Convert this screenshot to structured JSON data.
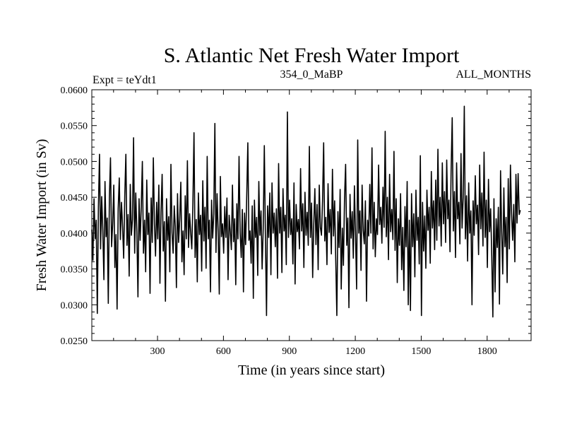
{
  "chart_data": {
    "type": "line",
    "title": "S. Atlantic Net Fresh Water Import",
    "subtitle_left": "Expt = teYdt1",
    "subtitle_center": "354_0_MaBP",
    "subtitle_right": "ALL_MONTHS",
    "xlabel": "Time (in years since start)",
    "ylabel": "Fresh Water Import (in Sv)",
    "xlim": [
      1,
      2000
    ],
    "ylim": [
      0.025,
      0.06
    ],
    "xticks": [
      300,
      600,
      900,
      1200,
      1500,
      1800
    ],
    "xtick_labels": [
      "300",
      "600",
      "900",
      "1200",
      "1500",
      "1800"
    ],
    "yticks": [
      0.025,
      0.03,
      0.035,
      0.04,
      0.045,
      0.05,
      0.055,
      0.06
    ],
    "ytick_labels": [
      "0.0250",
      "0.0300",
      "0.0350",
      "0.0400",
      "0.0450",
      "0.0500",
      "0.0550",
      "0.0600"
    ],
    "series": [
      {
        "name": "Net Fresh Water Import",
        "color": "#000000",
        "x_start": 1,
        "x_step": 5,
        "values": [
          0.0405,
          0.0362,
          0.0448,
          0.0392,
          0.0418,
          0.0288,
          0.0436,
          0.051,
          0.0378,
          0.0451,
          0.0404,
          0.0335,
          0.0472,
          0.0395,
          0.0421,
          0.0302,
          0.0449,
          0.0505,
          0.0381,
          0.0413,
          0.0467,
          0.0352,
          0.0398,
          0.0294,
          0.0434,
          0.0477,
          0.0391,
          0.0443,
          0.0409,
          0.0365,
          0.0452,
          0.051,
          0.0383,
          0.0426,
          0.034,
          0.0468,
          0.0397,
          0.0419,
          0.0533,
          0.0372,
          0.0456,
          0.0402,
          0.0311,
          0.0448,
          0.039,
          0.0437,
          0.05,
          0.0372,
          0.0418,
          0.0346,
          0.0474,
          0.0398,
          0.0428,
          0.0316,
          0.0449,
          0.0387,
          0.0505,
          0.0412,
          0.0368,
          0.0443,
          0.0392,
          0.0467,
          0.033,
          0.043,
          0.0482,
          0.0375,
          0.0416,
          0.0305,
          0.0448,
          0.039,
          0.0423,
          0.0346,
          0.0496,
          0.0401,
          0.0372,
          0.0438,
          0.0409,
          0.0324,
          0.0455,
          0.0387,
          0.0419,
          0.0471,
          0.036,
          0.0403,
          0.0342,
          0.0452,
          0.0392,
          0.0501,
          0.038,
          0.0427,
          0.04,
          0.0378,
          0.0442,
          0.054,
          0.0366,
          0.0419,
          0.0332,
          0.0456,
          0.0398,
          0.0425,
          0.0347,
          0.0473,
          0.0389,
          0.0436,
          0.0351,
          0.0507,
          0.0392,
          0.0418,
          0.0318,
          0.0446,
          0.0393,
          0.0427,
          0.0553,
          0.0373,
          0.0455,
          0.0402,
          0.0315,
          0.0479,
          0.0395,
          0.0413,
          0.0372,
          0.0437,
          0.0394,
          0.0449,
          0.0335,
          0.0425,
          0.0402,
          0.0377,
          0.0467,
          0.0388,
          0.042,
          0.0328,
          0.0441,
          0.0392,
          0.0507,
          0.04,
          0.0366,
          0.0433,
          0.0318,
          0.0428,
          0.0384,
          0.0452,
          0.0526,
          0.039,
          0.0403,
          0.0358,
          0.0438,
          0.0309,
          0.0446,
          0.0394,
          0.0422,
          0.0341,
          0.0472,
          0.0397,
          0.0431,
          0.035,
          0.0406,
          0.0522,
          0.0396,
          0.0285,
          0.0438,
          0.0394,
          0.0456,
          0.0342,
          0.047,
          0.04,
          0.0428,
          0.0381,
          0.0434,
          0.0337,
          0.0497,
          0.04,
          0.0436,
          0.0345,
          0.0462,
          0.0403,
          0.0425,
          0.0356,
          0.0569,
          0.0394,
          0.0446,
          0.0398,
          0.042,
          0.0357,
          0.047,
          0.0329,
          0.044,
          0.0402,
          0.0419,
          0.0378,
          0.049,
          0.0403,
          0.0441,
          0.0352,
          0.0457,
          0.0397,
          0.0429,
          0.0383,
          0.0521,
          0.0394,
          0.0442,
          0.0338,
          0.0412,
          0.0462,
          0.0384,
          0.044,
          0.0349,
          0.0467,
          0.0408,
          0.0397,
          0.0445,
          0.0526,
          0.0389,
          0.0422,
          0.0356,
          0.0469,
          0.0401,
          0.0433,
          0.0371,
          0.0489,
          0.0396,
          0.0445,
          0.0363,
          0.0285,
          0.043,
          0.038,
          0.0461,
          0.0322,
          0.0407,
          0.0355,
          0.0449,
          0.0496,
          0.0383,
          0.0421,
          0.0296,
          0.0454,
          0.0393,
          0.043,
          0.0365,
          0.0466,
          0.0398,
          0.0322,
          0.053,
          0.04,
          0.0431,
          0.0348,
          0.0467,
          0.0404,
          0.0385,
          0.0445,
          0.0305,
          0.0418,
          0.0396,
          0.0468,
          0.04,
          0.0519,
          0.0378,
          0.0443,
          0.0367,
          0.042,
          0.0398,
          0.0495,
          0.0412,
          0.0436,
          0.0386,
          0.0464,
          0.0408,
          0.0542,
          0.0395,
          0.045,
          0.0363,
          0.0482,
          0.0402,
          0.0433,
          0.0391,
          0.0514,
          0.0376,
          0.0448,
          0.0331,
          0.042,
          0.0383,
          0.0455,
          0.0349,
          0.0408,
          0.032,
          0.0437,
          0.0381,
          0.0472,
          0.03,
          0.0418,
          0.0292,
          0.0455,
          0.0381,
          0.0427,
          0.0339,
          0.046,
          0.039,
          0.0422,
          0.0357,
          0.0508,
          0.0285,
          0.0443,
          0.0375,
          0.0424,
          0.0351,
          0.046,
          0.0404,
          0.0436,
          0.0358,
          0.0486,
          0.0407,
          0.0445,
          0.0377,
          0.0474,
          0.039,
          0.0517,
          0.041,
          0.045,
          0.0382,
          0.0498,
          0.0413,
          0.0458,
          0.0387,
          0.0502,
          0.042,
          0.0446,
          0.0374,
          0.0487,
          0.0561,
          0.0403,
          0.0458,
          0.0366,
          0.0498,
          0.042,
          0.0443,
          0.0385,
          0.0511,
          0.0407,
          0.045,
          0.0577,
          0.0392,
          0.0452,
          0.0361,
          0.047,
          0.04,
          0.0431,
          0.03,
          0.0445,
          0.0397,
          0.048,
          0.0413,
          0.0439,
          0.037,
          0.0495,
          0.0406,
          0.0456,
          0.0382,
          0.0513,
          0.0394,
          0.0446,
          0.0352,
          0.0475,
          0.0402,
          0.0434,
          0.0367,
          0.0283,
          0.0448,
          0.0318,
          0.042,
          0.038,
          0.0436,
          0.0301,
          0.0487,
          0.0402,
          0.0343,
          0.0463,
          0.0381,
          0.0422,
          0.0331,
          0.0476,
          0.0378,
          0.0495,
          0.0428,
          0.039,
          0.044,
          0.036,
          0.0482,
          0.0414,
          0.0483,
          0.0426,
          0.0432
        ]
      }
    ]
  }
}
